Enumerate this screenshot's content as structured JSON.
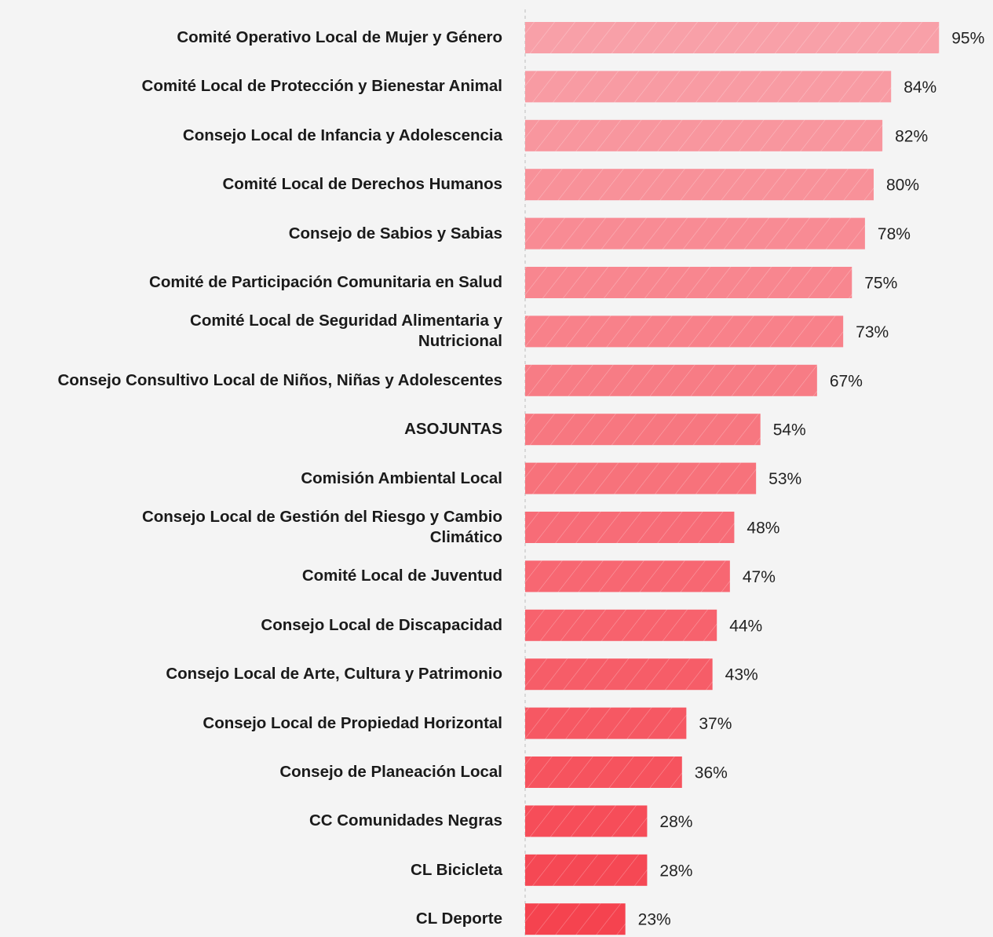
{
  "chart_data": {
    "type": "hbar",
    "categories": [
      "Comité Operativo Local de Mujer y Género",
      "Comité Local de Protección y Bienestar Animal",
      "Consejo Local de Infancia y Adolescencia",
      "Comité Local de Derechos Humanos",
      "Consejo de Sabios y Sabias",
      "Comité de Participación Comunitaria en Salud",
      "Comité Local de Seguridad Alimentaria y\nNutricional",
      "Consejo Consultivo Local de Niños, Niñas y Adolescentes",
      "ASOJUNTAS",
      "Comisión Ambiental Local",
      "Consejo Local de Gestión del Riesgo y Cambio\nClimático",
      "Comité Local de Juventud",
      "Consejo Local de Discapacidad",
      "Consejo Local de Arte, Cultura y Patrimonio",
      "Consejo Local de Propiedad Horizontal",
      "Consejo de Planeación Local",
      "CC Comunidades Negras",
      "CL Bicicleta",
      "CL Deporte"
    ],
    "values": [
      95,
      84,
      82,
      80,
      78,
      75,
      73,
      67,
      54,
      53,
      48,
      47,
      44,
      43,
      37,
      36,
      28,
      28,
      23
    ],
    "value_labels": [
      "95%",
      "84%",
      "82%",
      "80%",
      "78%",
      "75%",
      "73%",
      "67%",
      "54%",
      "53%",
      "48%",
      "47%",
      "44%",
      "43%",
      "37%",
      "36%",
      "28%",
      "28%",
      "23%"
    ],
    "colors": [
      "#f8a0a8",
      "#f89ba3",
      "#f8969e",
      "#f89199",
      "#f88b94",
      "#f8868f",
      "#f8818a",
      "#f77c85",
      "#f77780",
      "#f7727b",
      "#f76c77",
      "#f76772",
      "#f7626d",
      "#f65d68",
      "#f65863",
      "#f6535e",
      "#f64d59",
      "#f54854",
      "#f5434f"
    ],
    "xlim": [
      0,
      100
    ]
  }
}
